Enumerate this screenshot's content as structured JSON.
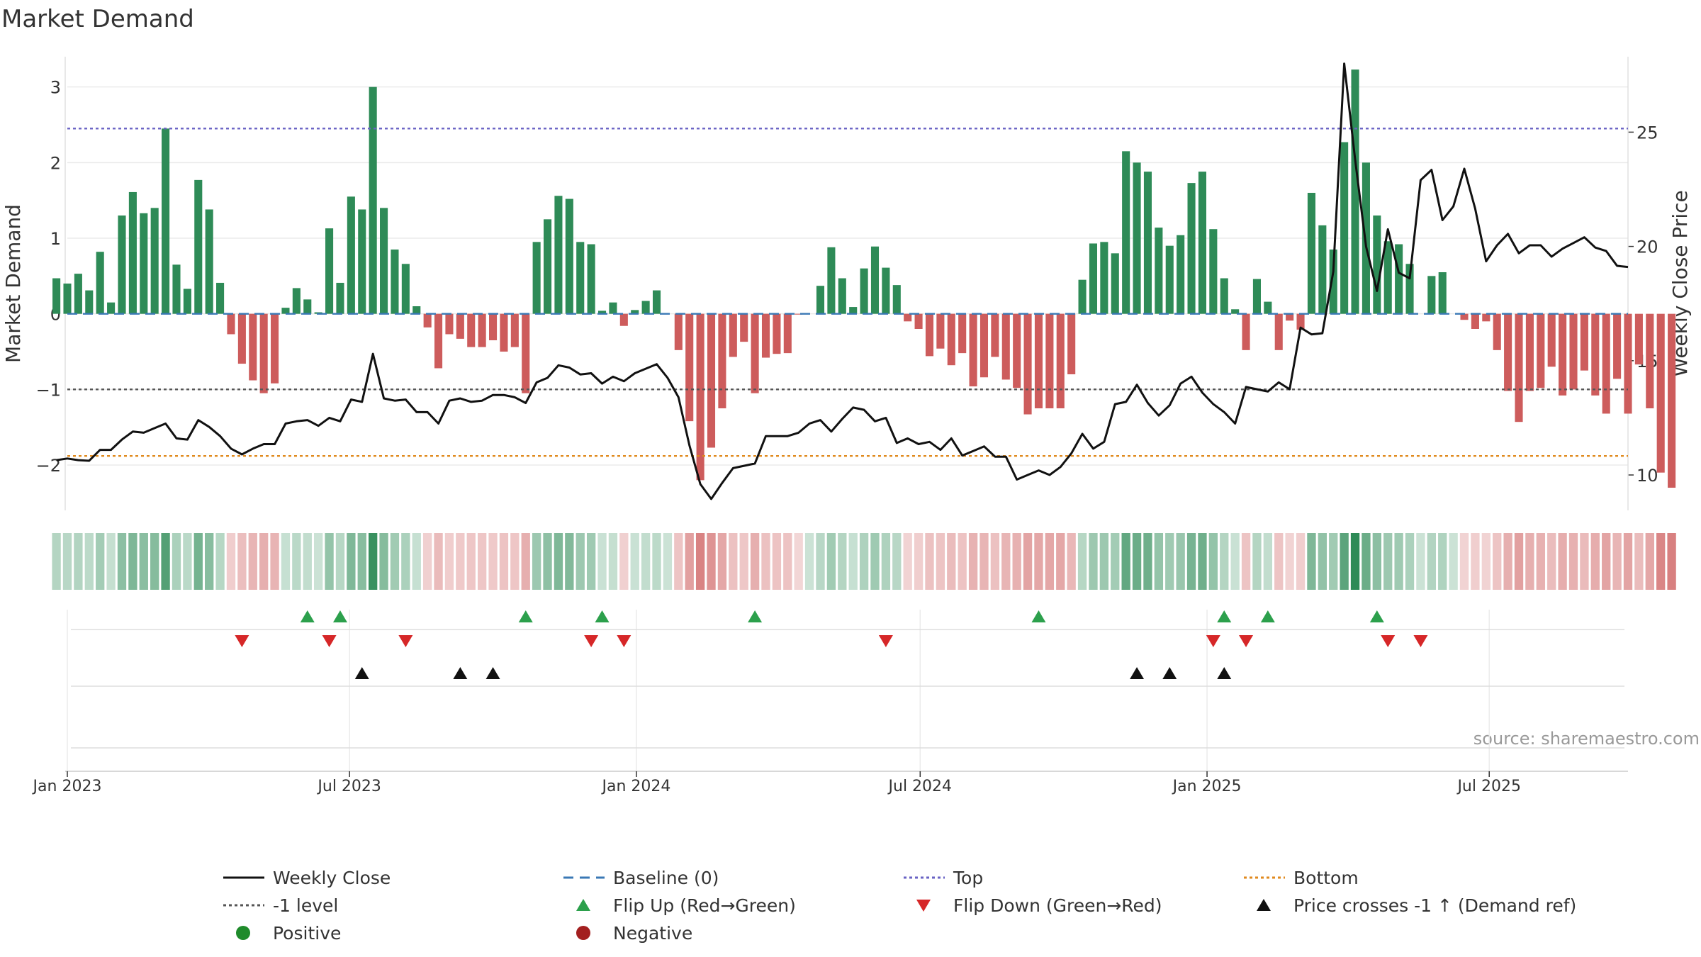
{
  "chart_data": {
    "type": "bar+line",
    "title": "Market Demand",
    "ylabel_left": "Market Demand",
    "ylabel_right": "Weekly Close Price",
    "source": "source: sharemaestro.com",
    "x_start": "2023-01-01",
    "x_end": "2025-09-28",
    "x_ticks": [
      {
        "date": "2023-01-01",
        "label": "Jan 2023"
      },
      {
        "date": "2023-07-01",
        "label": "Jul 2023"
      },
      {
        "date": "2024-01-01",
        "label": "Jan 2024"
      },
      {
        "date": "2024-07-01",
        "label": "Jul 2024"
      },
      {
        "date": "2025-01-01",
        "label": "Jan 2025"
      },
      {
        "date": "2025-07-01",
        "label": "Jul 2025"
      }
    ],
    "ylim_left": [
      -2.6,
      3.4
    ],
    "yticks_left": [
      {
        "v": 3,
        "label": "3"
      },
      {
        "v": 2,
        "label": "2"
      },
      {
        "v": 1,
        "label": "1"
      },
      {
        "v": 0,
        "label": "0"
      },
      {
        "v": -1,
        "label": "−1"
      },
      {
        "v": -2,
        "label": "−2"
      }
    ],
    "ylim_right": [
      8.45,
      28.3
    ],
    "yticks_right": [
      {
        "v": 25,
        "label": "25"
      },
      {
        "v": 20,
        "label": "20"
      },
      {
        "v": 15,
        "label": "15"
      },
      {
        "v": 10,
        "label": "10"
      }
    ],
    "levels": {
      "top": 2.45,
      "minus_one": -1,
      "bottom": -1.88,
      "baseline": 0
    },
    "first_week": "2022-12-25",
    "demand": [
      0.47,
      0.4,
      0.53,
      0.31,
      0.82,
      0.15,
      1.3,
      1.61,
      1.33,
      1.4,
      2.45,
      0.65,
      0.33,
      1.77,
      1.38,
      0.41,
      -0.27,
      -0.66,
      -0.88,
      -1.05,
      -0.92,
      0.08,
      0.34,
      0.19,
      0.02,
      1.13,
      0.41,
      1.55,
      1.38,
      3.0,
      1.4,
      0.85,
      0.66,
      0.1,
      -0.18,
      -0.72,
      -0.27,
      -0.33,
      -0.44,
      -0.44,
      -0.35,
      -0.5,
      -0.44,
      -1.05,
      0.95,
      1.25,
      1.56,
      1.52,
      0.95,
      0.92,
      0.04,
      0.15,
      -0.16,
      0.05,
      0.17,
      0.31,
      0.0,
      -0.48,
      -1.42,
      -2.2,
      -1.77,
      -1.25,
      -0.57,
      -0.37,
      -1.05,
      -0.58,
      -0.53,
      -0.52,
      -0.01,
      0.0,
      0.37,
      0.88,
      0.47,
      0.09,
      0.6,
      0.89,
      0.61,
      0.38,
      -0.1,
      -0.2,
      -0.56,
      -0.46,
      -0.68,
      -0.52,
      -0.96,
      -0.84,
      -0.57,
      -0.87,
      -0.98,
      -1.33,
      -1.25,
      -1.25,
      -1.25,
      -0.8,
      0.45,
      0.93,
      0.95,
      0.8,
      2.15,
      2.0,
      1.88,
      1.14,
      0.9,
      1.04,
      1.73,
      1.88,
      1.12,
      0.47,
      0.06,
      -0.48,
      0.46,
      0.16,
      -0.48,
      -0.09,
      -0.21,
      1.6,
      1.17,
      0.85,
      2.27,
      3.23,
      2.0,
      1.3,
      0.96,
      0.92,
      0.66,
      0.0,
      0.5,
      0.55,
      0.0,
      -0.08,
      -0.2,
      -0.1,
      -0.48,
      -1.02,
      -1.43,
      -1.02,
      -0.98,
      -0.7,
      -1.08,
      -1.0,
      -0.75,
      -1.08,
      -1.32,
      -0.86,
      -1.32,
      -0.67,
      -1.25,
      -2.1,
      -2.3
    ],
    "weekly_close": [
      10.65,
      10.72,
      10.65,
      10.62,
      11.1,
      11.1,
      11.55,
      11.9,
      11.85,
      12.05,
      12.25,
      11.6,
      11.55,
      12.4,
      12.1,
      11.7,
      11.15,
      10.9,
      11.15,
      11.35,
      11.35,
      12.25,
      12.35,
      12.4,
      12.15,
      12.5,
      12.35,
      13.3,
      13.2,
      15.3,
      13.35,
      13.25,
      13.3,
      12.75,
      12.75,
      12.25,
      13.25,
      13.35,
      13.2,
      13.25,
      13.5,
      13.5,
      13.4,
      13.15,
      14.05,
      14.25,
      14.8,
      14.7,
      14.4,
      14.45,
      14.0,
      14.3,
      14.1,
      14.45,
      14.65,
      14.85,
      14.25,
      13.4,
      11.3,
      9.6,
      8.95,
      9.65,
      10.3,
      10.4,
      10.5,
      11.7,
      11.7,
      11.7,
      11.85,
      12.25,
      12.4,
      11.9,
      12.45,
      12.95,
      12.85,
      12.35,
      12.5,
      11.4,
      11.6,
      11.35,
      11.45,
      11.1,
      11.6,
      10.85,
      11.05,
      11.25,
      10.8,
      10.8,
      9.8,
      10.0,
      10.2,
      10.0,
      10.35,
      10.95,
      11.8,
      11.15,
      11.45,
      13.1,
      13.2,
      13.95,
      13.15,
      12.6,
      13.05,
      14.0,
      14.3,
      13.6,
      13.1,
      12.75,
      12.25,
      13.85,
      13.75,
      13.65,
      14.05,
      13.75,
      16.45,
      16.15,
      16.2,
      18.9,
      28.0,
      23.8,
      20.0,
      18.05,
      20.75,
      18.85,
      18.6,
      22.9,
      23.35,
      21.15,
      21.75,
      23.4,
      21.65,
      19.35,
      20.05,
      20.55,
      19.7,
      20.05,
      20.05,
      19.55,
      19.9,
      20.15,
      20.4,
      19.95,
      19.8,
      19.15,
      19.1
    ],
    "flip_up_dates": [
      "2023-06-04",
      "2023-06-25",
      "2023-10-22",
      "2023-12-10",
      "2024-03-17",
      "2024-09-15",
      "2025-01-12",
      "2025-02-09",
      "2025-04-20"
    ],
    "flip_down_dates": [
      "2023-04-23",
      "2023-06-18",
      "2023-08-06",
      "2023-12-03",
      "2023-12-24",
      "2024-06-09",
      "2025-01-05",
      "2025-01-26",
      "2025-04-27",
      "2025-05-18"
    ],
    "price_cross_dates": [
      "2023-07-09",
      "2023-09-10",
      "2023-10-01",
      "2024-11-17",
      "2024-12-08",
      "2025-01-12"
    ],
    "legend": [
      {
        "label": "Weekly Close",
        "symbol": "line-solid",
        "color": "#111111"
      },
      {
        "label": "Baseline (0)",
        "symbol": "line-dashed",
        "color": "#3a78b5"
      },
      {
        "label": "Top",
        "symbol": "line-dotted",
        "color": "#6a63c4"
      },
      {
        "label": "Bottom",
        "symbol": "line-dotted",
        "color": "#e08a1e"
      },
      {
        "label": "-1 level",
        "symbol": "line-dotted",
        "color": "#555555"
      },
      {
        "label": "Flip Up (Red→Green)",
        "symbol": "triangle-up",
        "color": "#2ca04c"
      },
      {
        "label": "Flip Down (Green→Red)",
        "symbol": "triangle-down",
        "color": "#d62728"
      },
      {
        "label": "Price crosses -1 ↑ (Demand ref)",
        "symbol": "triangle-up",
        "color": "#111111"
      },
      {
        "label": "Positive",
        "symbol": "circle",
        "color": "#1f8b2b"
      },
      {
        "label": "Negative",
        "symbol": "circle",
        "color": "#a31f1f"
      }
    ],
    "colors": {
      "positive_bar": "#2e8b57",
      "negative_bar": "#cd5c5c",
      "weekly_close": "#111111",
      "baseline": "#3a78b5",
      "top": "#6a63c4",
      "bottom": "#e08a1e",
      "minus_one": "#555555",
      "flip_up": "#2ca04c",
      "flip_down": "#d62728",
      "price_cross": "#111111"
    }
  }
}
